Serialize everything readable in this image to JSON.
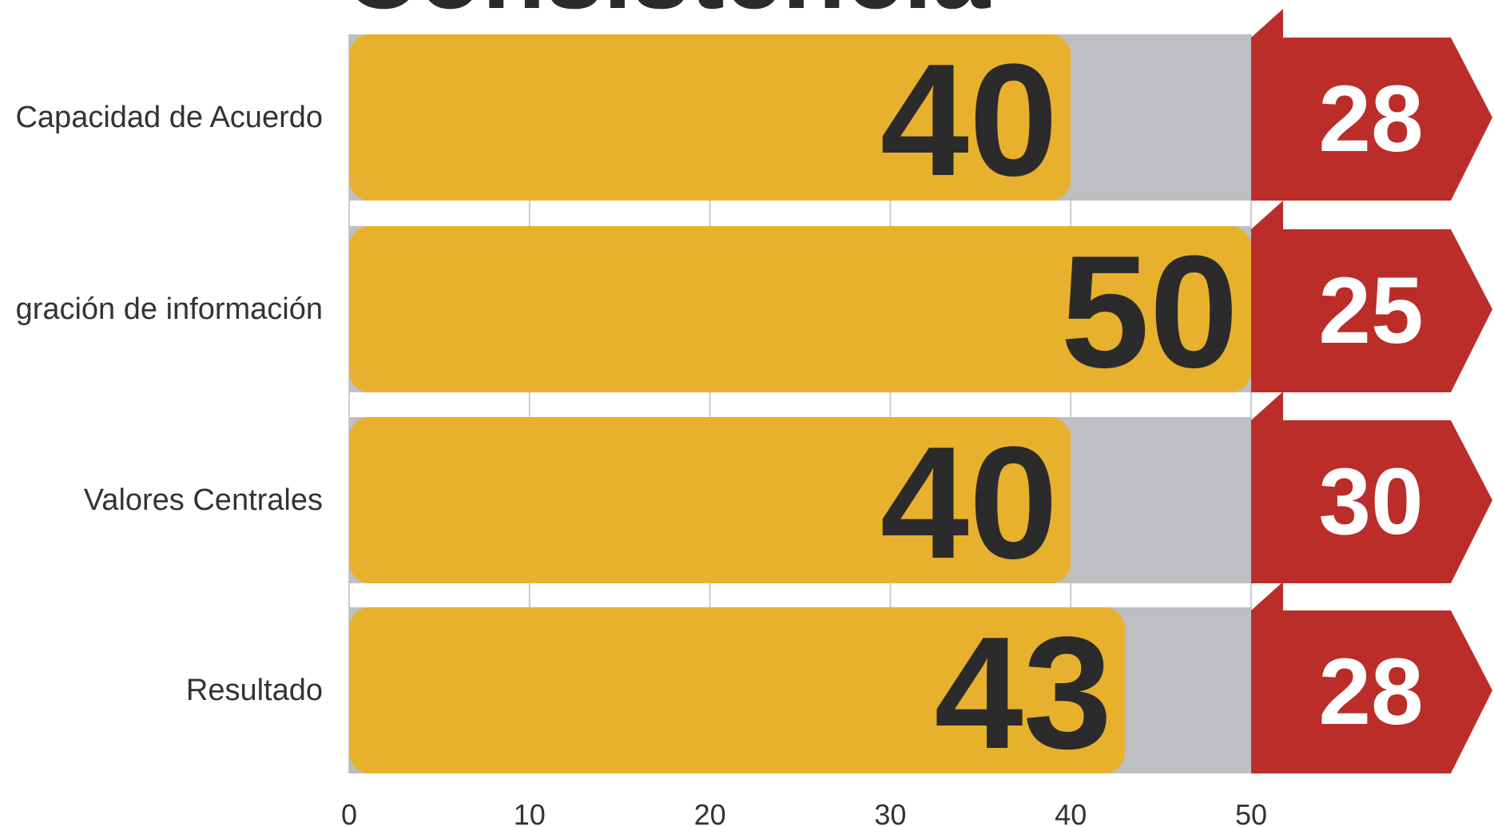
{
  "chart_data": {
    "type": "bar",
    "orientation": "horizontal",
    "title": "Consistencia",
    "categories": [
      "Capacidad de Acuerdo",
      "gración de información",
      "Valores Centrales",
      "Resultado"
    ],
    "series": [
      {
        "values": [
          40,
          50,
          40,
          43
        ]
      }
    ],
    "secondary_values": [
      28,
      25,
      30,
      28
    ],
    "xlim": [
      0,
      50
    ],
    "xticks": [
      "0",
      "10",
      "20",
      "30",
      "40",
      "50"
    ],
    "grid": true,
    "colors": {
      "bar": "#E8B12D",
      "track": "#BEBFC2",
      "badge": "#BB2D29",
      "value_text": "#2B2B2B",
      "badge_text": "#FFFFFF",
      "grid": "#CCCCCC"
    }
  }
}
